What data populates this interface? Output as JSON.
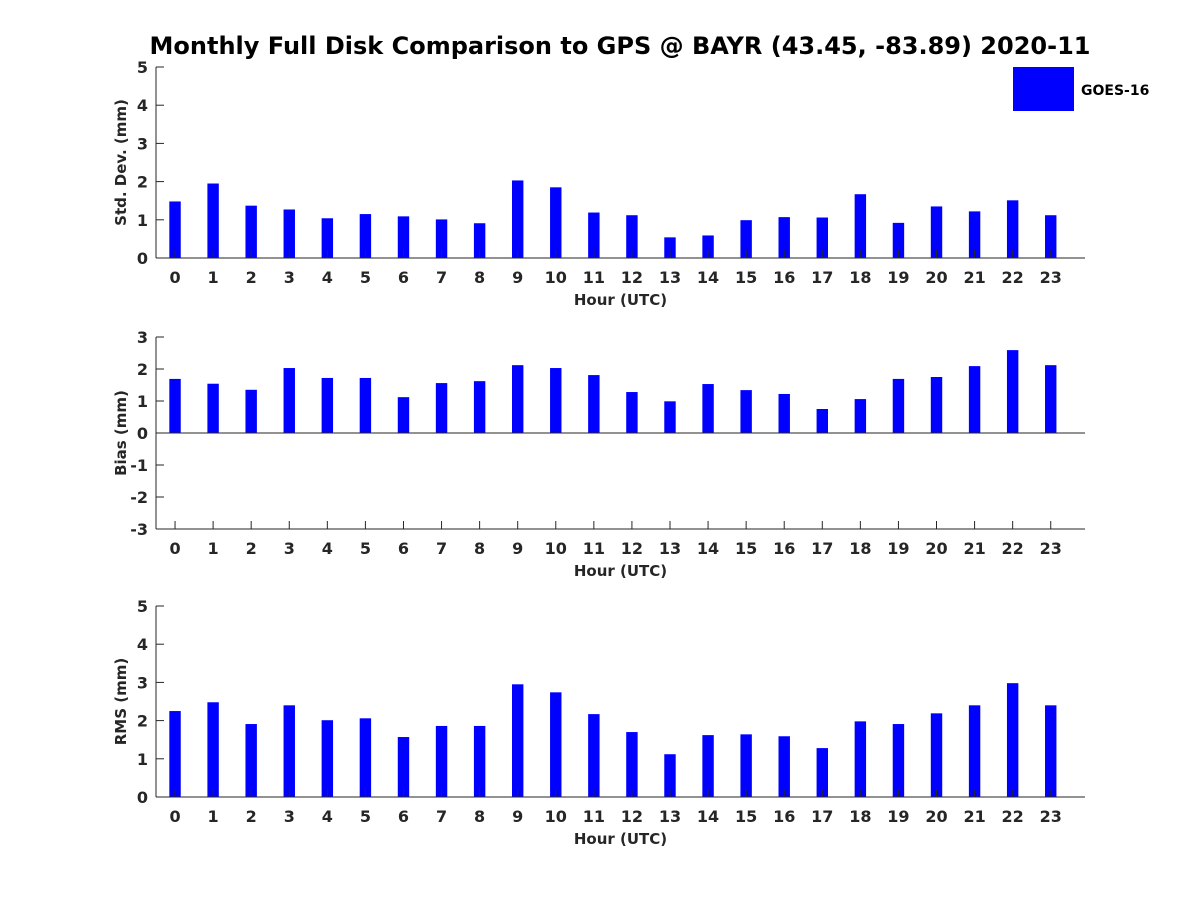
{
  "title": "Monthly Full Disk Comparison to GPS @ BAYR (43.45, -83.89) 2020-11",
  "colors": {
    "bar": "#0000ff",
    "axis": "#262626",
    "title": "#000000"
  },
  "legend": {
    "label": "GOES-16",
    "placement": "top-right"
  },
  "chart_data": [
    {
      "type": "bar",
      "id": "stddev",
      "xlabel": "Hour (UTC)",
      "ylabel": "Std. Dev. (mm)",
      "ylim": [
        0,
        5
      ],
      "yticks": [
        0,
        1,
        2,
        3,
        4,
        5
      ],
      "categories": [
        "0",
        "1",
        "2",
        "3",
        "4",
        "5",
        "6",
        "7",
        "8",
        "9",
        "10",
        "11",
        "12",
        "13",
        "14",
        "15",
        "16",
        "17",
        "18",
        "19",
        "20",
        "21",
        "22",
        "23"
      ],
      "series": [
        {
          "name": "GOES-16",
          "values": [
            1.48,
            1.95,
            1.37,
            1.27,
            1.04,
            1.15,
            1.09,
            1.01,
            0.91,
            2.03,
            1.85,
            1.19,
            1.12,
            0.54,
            0.59,
            0.99,
            1.07,
            1.06,
            1.67,
            0.92,
            1.35,
            1.22,
            1.51,
            1.12
          ]
        }
      ]
    },
    {
      "type": "bar",
      "id": "bias",
      "xlabel": "Hour (UTC)",
      "ylabel": "Bias (mm)",
      "ylim": [
        -3,
        3
      ],
      "yticks": [
        -3,
        -2,
        -1,
        0,
        1,
        2,
        3
      ],
      "categories": [
        "0",
        "1",
        "2",
        "3",
        "4",
        "5",
        "6",
        "7",
        "8",
        "9",
        "10",
        "11",
        "12",
        "13",
        "14",
        "15",
        "16",
        "17",
        "18",
        "19",
        "20",
        "21",
        "22",
        "23"
      ],
      "series": [
        {
          "name": "GOES-16",
          "values": [
            1.69,
            1.54,
            1.35,
            2.03,
            1.72,
            1.72,
            1.12,
            1.56,
            1.62,
            2.12,
            2.03,
            1.81,
            1.28,
            0.99,
            1.53,
            1.34,
            1.22,
            0.75,
            1.06,
            1.69,
            1.75,
            2.09,
            2.59,
            2.12
          ]
        }
      ]
    },
    {
      "type": "bar",
      "id": "rms",
      "xlabel": "Hour (UTC)",
      "ylabel": "RMS (mm)",
      "ylim": [
        0,
        5
      ],
      "yticks": [
        0,
        1,
        2,
        3,
        4,
        5
      ],
      "categories": [
        "0",
        "1",
        "2",
        "3",
        "4",
        "5",
        "6",
        "7",
        "8",
        "9",
        "10",
        "11",
        "12",
        "13",
        "14",
        "15",
        "16",
        "17",
        "18",
        "19",
        "20",
        "21",
        "22",
        "23"
      ],
      "series": [
        {
          "name": "GOES-16",
          "values": [
            2.25,
            2.48,
            1.91,
            2.4,
            2.01,
            2.06,
            1.57,
            1.86,
            1.86,
            2.95,
            2.74,
            2.17,
            1.7,
            1.12,
            1.62,
            1.64,
            1.59,
            1.28,
            1.98,
            1.91,
            2.19,
            2.4,
            2.98,
            2.4
          ]
        }
      ]
    }
  ]
}
